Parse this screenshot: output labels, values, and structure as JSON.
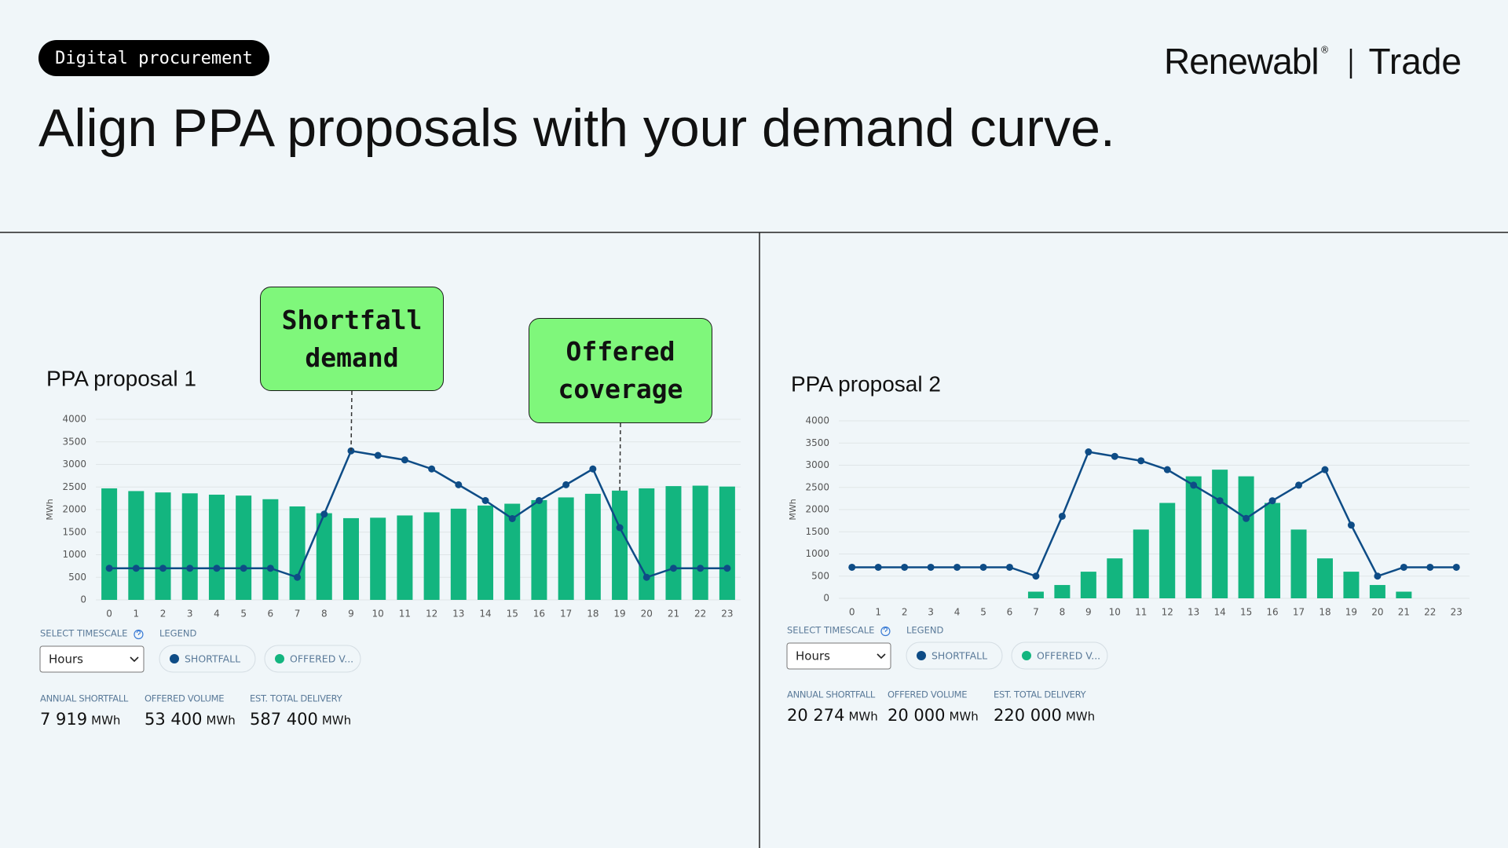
{
  "header": {
    "tag": "Digital procurement",
    "brand": "Renewabl",
    "brand_mark": "®",
    "product": "Trade",
    "title": "Align PPA proposals with your demand curve."
  },
  "chart_data": [
    {
      "type": "combo",
      "title": "PPA proposal 1",
      "y_label": "MWh",
      "categories": [
        0,
        1,
        2,
        3,
        4,
        5,
        6,
        7,
        8,
        9,
        10,
        11,
        12,
        13,
        14,
        15,
        16,
        17,
        18,
        19,
        20,
        21,
        22,
        23
      ],
      "series": [
        {
          "name": "SHORTFALL",
          "type": "line",
          "color": "#0e4c86",
          "values": [
            700,
            700,
            700,
            700,
            700,
            700,
            700,
            500,
            1900,
            3300,
            3200,
            3100,
            2900,
            2550,
            2200,
            1800,
            2200,
            2550,
            2900,
            1600,
            500,
            700,
            700,
            700
          ]
        },
        {
          "name": "OFFERED V...",
          "type": "bar",
          "color": "#13b57f",
          "values": [
            2470,
            2410,
            2380,
            2360,
            2330,
            2310,
            2230,
            2070,
            1920,
            1810,
            1820,
            1870,
            1940,
            2020,
            2090,
            2130,
            2210,
            2270,
            2350,
            2420,
            2470,
            2520,
            2530,
            2510
          ]
        }
      ],
      "ylim": [
        0,
        4000
      ],
      "yticks": [
        0,
        500,
        1000,
        1500,
        2000,
        2500,
        3000,
        3500,
        4000
      ],
      "grid": true,
      "annotations": [
        "Shortfall demand",
        "Offered coverage"
      ],
      "timescale_label": "SELECT TIMESCALE",
      "timescale": "Hours",
      "legend_label": "LEGEND",
      "stats": [
        {
          "label": "ANNUAL SHORTFALL",
          "value": "7 919",
          "unit": "MWh"
        },
        {
          "label": "OFFERED VOLUME",
          "value": "53 400",
          "unit": "MWh"
        },
        {
          "label": "EST. TOTAL DELIVERY",
          "value": "587 400",
          "unit": "MWh"
        }
      ]
    },
    {
      "type": "combo",
      "title": "PPA proposal 2",
      "y_label": "MWh",
      "categories": [
        0,
        1,
        2,
        3,
        4,
        5,
        6,
        7,
        8,
        9,
        10,
        11,
        12,
        13,
        14,
        15,
        16,
        17,
        18,
        19,
        20,
        21,
        22,
        23
      ],
      "series": [
        {
          "name": "SHORTFALL",
          "type": "line",
          "color": "#0e4c86",
          "values": [
            700,
            700,
            700,
            700,
            700,
            700,
            700,
            500,
            1850,
            3300,
            3200,
            3100,
            2900,
            2550,
            2200,
            1800,
            2200,
            2550,
            2900,
            1650,
            500,
            700,
            700,
            700
          ]
        },
        {
          "name": "OFFERED V...",
          "type": "bar",
          "color": "#13b57f",
          "values": [
            0,
            0,
            0,
            0,
            0,
            0,
            0,
            150,
            300,
            600,
            900,
            1550,
            2150,
            2750,
            2900,
            2750,
            2150,
            1550,
            900,
            600,
            300,
            150,
            0,
            0
          ]
        }
      ],
      "ylim": [
        0,
        4000
      ],
      "yticks": [
        0,
        500,
        1000,
        1500,
        2000,
        2500,
        3000,
        3500,
        4000
      ],
      "grid": true,
      "timescale_label": "SELECT TIMESCALE",
      "timescale": "Hours",
      "legend_label": "LEGEND",
      "stats": [
        {
          "label": "ANNUAL SHORTFALL",
          "value": "20 274",
          "unit": "MWh"
        },
        {
          "label": "OFFERED VOLUME",
          "value": "20 000",
          "unit": "MWh"
        },
        {
          "label": "EST. TOTAL DELIVERY",
          "value": "220 000",
          "unit": "MWh"
        }
      ]
    }
  ]
}
